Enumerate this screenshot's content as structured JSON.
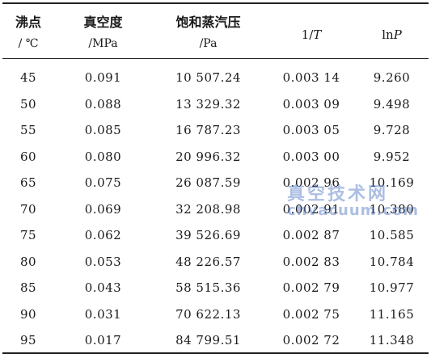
{
  "table": {
    "headers": [
      {
        "line1": "沸点",
        "line2": "/ ℃"
      },
      {
        "line1": "真空度",
        "line2": "/MPa"
      },
      {
        "line1": "饱和蒸汽压",
        "line2": "/Pa"
      },
      {
        "line1_prefix": "1/",
        "line1_italic": "T"
      },
      {
        "line1_prefix": "ln",
        "line1_italic": "P"
      }
    ],
    "rows": [
      [
        "45",
        "0.091",
        "10 507.24",
        "0.003 14",
        "9.260"
      ],
      [
        "50",
        "0.088",
        "13 329.32",
        "0.003 09",
        "9.498"
      ],
      [
        "55",
        "0.085",
        "16 787.23",
        "0.003 05",
        "9.728"
      ],
      [
        "60",
        "0.080",
        "20 996.32",
        "0.003 00",
        "9.952"
      ],
      [
        "65",
        "0.075",
        "26 087.59",
        "0.002 96",
        "10.169"
      ],
      [
        "70",
        "0.069",
        "32 208.98",
        "0.002 91",
        "10.380"
      ],
      [
        "75",
        "0.062",
        "39 526.69",
        "0.002 87",
        "10.585"
      ],
      [
        "80",
        "0.053",
        "48 226.57",
        "0.002 83",
        "10.784"
      ],
      [
        "85",
        "0.043",
        "58 515.36",
        "0.002 79",
        "10.977"
      ],
      [
        "90",
        "0.031",
        "70 622.13",
        "0.002 75",
        "11.165"
      ],
      [
        "95",
        "0.017",
        "84 799.51",
        "0.002 72",
        "11.348"
      ]
    ]
  },
  "watermark": {
    "line1": "真空技术网",
    "line2": "chvacuum.com"
  }
}
